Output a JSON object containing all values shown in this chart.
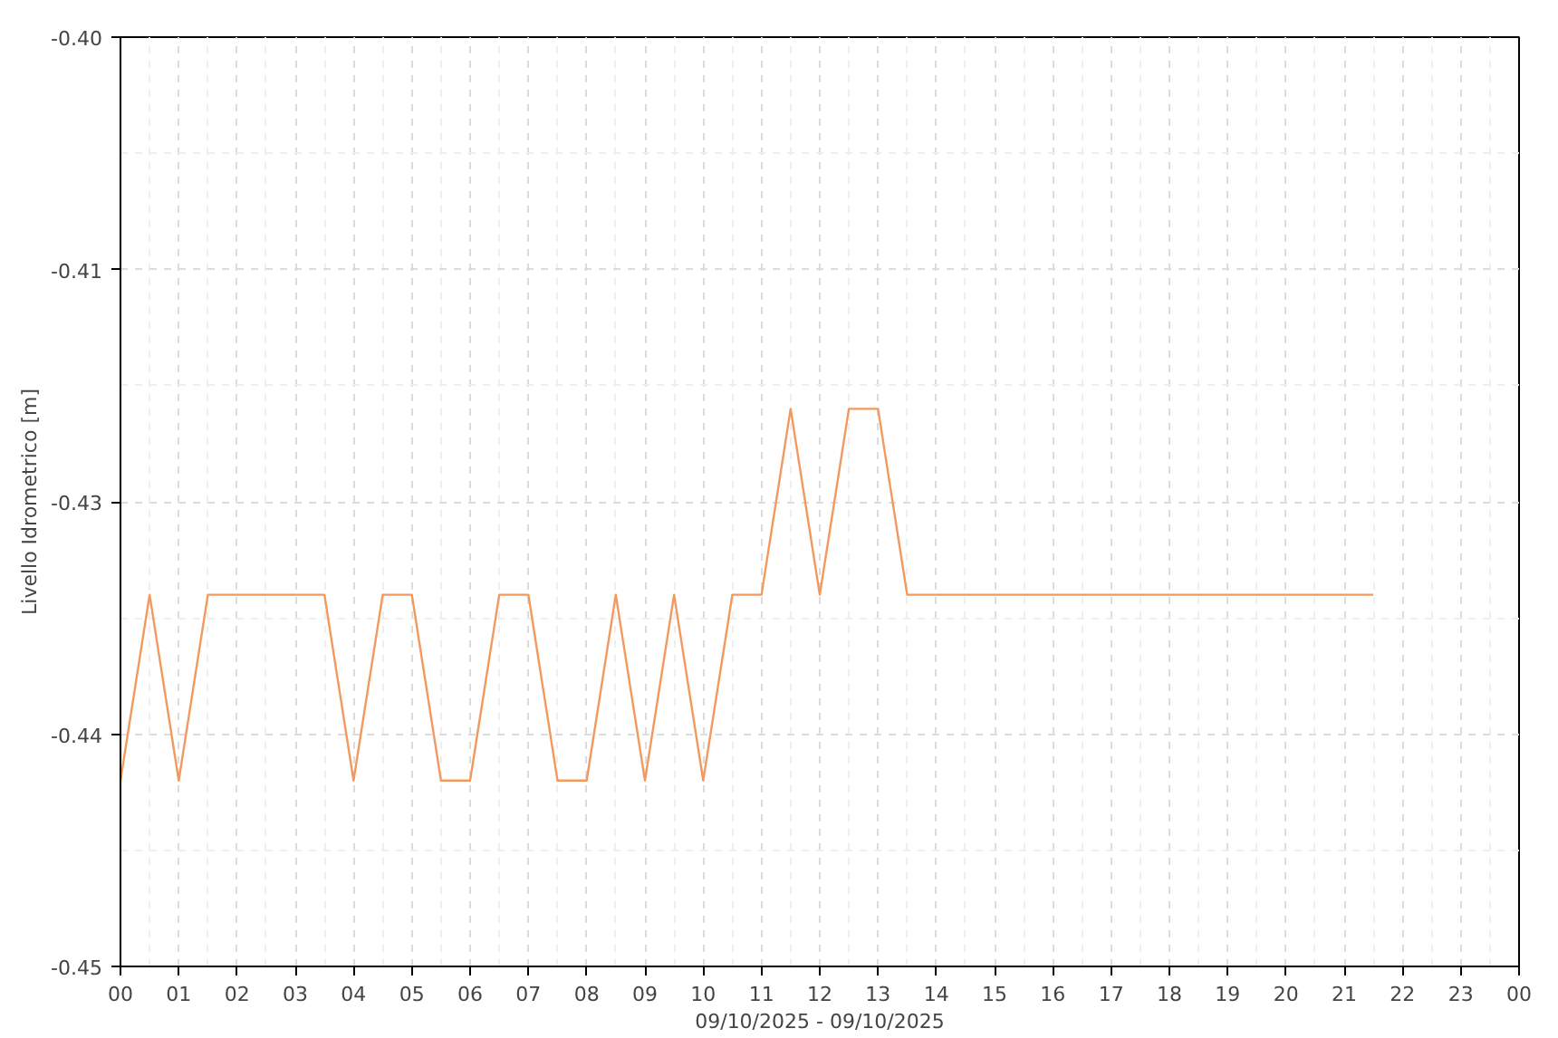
{
  "chart_data": {
    "type": "line",
    "xlabel": "09/10/2025 - 09/10/2025",
    "ylabel": "Livello Idrometrico [m]",
    "x": [
      0,
      0.5,
      1,
      1.5,
      2,
      2.5,
      3,
      3.5,
      4,
      4.5,
      5,
      5.5,
      6,
      6.5,
      7,
      7.5,
      8,
      8.5,
      9,
      9.5,
      10,
      10.5,
      11,
      11.5,
      12,
      12.5,
      13,
      13.5,
      14,
      14.5,
      15,
      15.5,
      16,
      16.5,
      17,
      17.5,
      18,
      18.5,
      19,
      19.5,
      20,
      20.5,
      21,
      21.5
    ],
    "series": [
      {
        "color": "#f29a5e",
        "values": [
          -0.44,
          -0.43,
          -0.44,
          -0.43,
          -0.43,
          -0.43,
          -0.43,
          -0.43,
          -0.44,
          -0.43,
          -0.43,
          -0.44,
          -0.44,
          -0.43,
          -0.43,
          -0.44,
          -0.44,
          -0.43,
          -0.44,
          -0.43,
          -0.44,
          -0.43,
          -0.43,
          -0.42,
          -0.43,
          -0.42,
          -0.42,
          -0.43,
          -0.43,
          -0.43,
          -0.43,
          -0.43,
          -0.43,
          -0.43,
          -0.43,
          -0.43,
          -0.43,
          -0.43,
          -0.43,
          -0.43,
          -0.43,
          -0.43,
          -0.43,
          -0.43
        ]
      }
    ],
    "xlim": [
      0,
      24
    ],
    "xticks": [
      {
        "value": 0,
        "label": "00"
      },
      {
        "value": 1,
        "label": "01"
      },
      {
        "value": 2,
        "label": "02"
      },
      {
        "value": 3,
        "label": "03"
      },
      {
        "value": 4,
        "label": "04"
      },
      {
        "value": 5,
        "label": "05"
      },
      {
        "value": 6,
        "label": "06"
      },
      {
        "value": 7,
        "label": "07"
      },
      {
        "value": 8,
        "label": "08"
      },
      {
        "value": 9,
        "label": "09"
      },
      {
        "value": 10,
        "label": "10"
      },
      {
        "value": 11,
        "label": "11"
      },
      {
        "value": 12,
        "label": "12"
      },
      {
        "value": 13,
        "label": "13"
      },
      {
        "value": 14,
        "label": "14"
      },
      {
        "value": 15,
        "label": "15"
      },
      {
        "value": 16,
        "label": "16"
      },
      {
        "value": 17,
        "label": "17"
      },
      {
        "value": 18,
        "label": "18"
      },
      {
        "value": 19,
        "label": "19"
      },
      {
        "value": 20,
        "label": "20"
      },
      {
        "value": 21,
        "label": "21"
      },
      {
        "value": 22,
        "label": "22"
      },
      {
        "value": 23,
        "label": "23"
      },
      {
        "value": 24,
        "label": "00"
      }
    ],
    "ylim": [
      -0.45,
      -0.4
    ],
    "yticks": [
      {
        "value": -0.45,
        "label": "-0.45"
      },
      {
        "value": -0.4375,
        "label": "-0.44"
      },
      {
        "value": -0.425,
        "label": "-0.43"
      },
      {
        "value": -0.4125,
        "label": "-0.41"
      },
      {
        "value": -0.4,
        "label": "-0.40"
      }
    ],
    "grid": true,
    "marker": "none",
    "line_style": "solid"
  }
}
